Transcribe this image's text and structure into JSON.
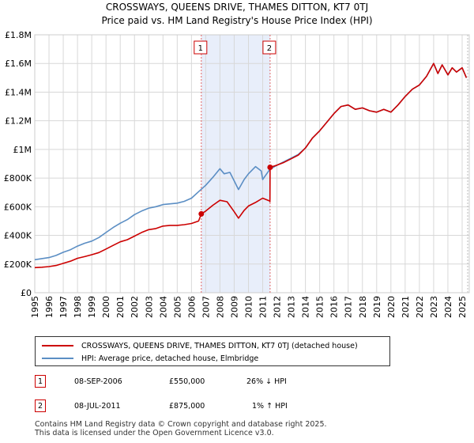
{
  "chart_data": {
    "type": "line",
    "title": "CROSSWAYS, QUEENS DRIVE, THAMES DITTON, KT7 0TJ",
    "subtitle": "Price paid vs. HM Land Registry's House Price Index (HPI)",
    "xlabel": "",
    "ylabel": "",
    "xlim": [
      1995,
      2025.5
    ],
    "ylim": [
      0,
      1800000
    ],
    "x_ticks": [
      "1995",
      "1996",
      "1997",
      "1998",
      "1999",
      "2000",
      "2001",
      "2002",
      "2003",
      "2004",
      "2005",
      "2006",
      "2007",
      "2008",
      "2009",
      "2010",
      "2011",
      "2012",
      "2013",
      "2014",
      "2015",
      "2016",
      "2017",
      "2018",
      "2019",
      "2020",
      "2021",
      "2022",
      "2023",
      "2024",
      "2025"
    ],
    "y_ticks": [
      {
        "value": 0,
        "label": "£0"
      },
      {
        "value": 200000,
        "label": "£200K"
      },
      {
        "value": 400000,
        "label": "£400K"
      },
      {
        "value": 600000,
        "label": "£600K"
      },
      {
        "value": 800000,
        "label": "£800K"
      },
      {
        "value": 1000000,
        "label": "£1M"
      },
      {
        "value": 1200000,
        "label": "£1.2M"
      },
      {
        "value": 1400000,
        "label": "£1.4M"
      },
      {
        "value": 1600000,
        "label": "£1.6M"
      },
      {
        "value": 1800000,
        "label": "£1.8M"
      }
    ],
    "shaded_range": [
      2006.69,
      2011.52
    ],
    "markers": [
      {
        "label": "1",
        "x": 2006.69,
        "y": 550000
      },
      {
        "label": "2",
        "x": 2011.52,
        "y": 875000
      }
    ],
    "series": [
      {
        "name": "CROSSWAYS, QUEENS DRIVE, THAMES DITTON, KT7 0TJ (detached house)",
        "color": "#cc0000",
        "x": [
          1995.0,
          1995.5,
          1996.0,
          1996.5,
          1997.0,
          1997.5,
          1998.0,
          1998.5,
          1999.0,
          1999.5,
          2000.0,
          2000.5,
          2001.0,
          2001.5,
          2002.0,
          2002.5,
          2003.0,
          2003.5,
          2004.0,
          2004.5,
          2005.0,
          2005.5,
          2006.0,
          2006.5,
          2006.69,
          2007.0,
          2007.5,
          2008.0,
          2008.5,
          2009.0,
          2009.3,
          2009.7,
          2010.0,
          2010.5,
          2011.0,
          2011.5,
          2011.51,
          2011.52,
          2012.0,
          2012.5,
          2013.0,
          2013.5,
          2014.0,
          2014.5,
          2015.0,
          2015.5,
          2016.0,
          2016.5,
          2017.0,
          2017.5,
          2018.0,
          2018.5,
          2019.0,
          2019.5,
          2020.0,
          2020.5,
          2021.0,
          2021.5,
          2022.0,
          2022.5,
          2023.0,
          2023.3,
          2023.6,
          2024.0,
          2024.3,
          2024.6,
          2025.0,
          2025.3
        ],
        "y": [
          175000,
          178000,
          182000,
          190000,
          205000,
          220000,
          240000,
          252000,
          265000,
          280000,
          305000,
          330000,
          355000,
          370000,
          395000,
          420000,
          440000,
          448000,
          465000,
          470000,
          470000,
          475000,
          483000,
          500000,
          550000,
          570000,
          610000,
          645000,
          635000,
          565000,
          520000,
          575000,
          605000,
          630000,
          660000,
          640000,
          635000,
          875000,
          890000,
          910000,
          935000,
          960000,
          1010000,
          1080000,
          1130000,
          1190000,
          1250000,
          1300000,
          1310000,
          1280000,
          1290000,
          1270000,
          1260000,
          1280000,
          1260000,
          1310000,
          1370000,
          1420000,
          1450000,
          1510000,
          1600000,
          1530000,
          1590000,
          1520000,
          1570000,
          1540000,
          1570000,
          1500000
        ]
      },
      {
        "name": "HPI: Average price, detached house, Elmbridge",
        "color": "#5b8ec4",
        "x": [
          1995.0,
          1995.5,
          1996.0,
          1996.5,
          1997.0,
          1997.5,
          1998.0,
          1998.5,
          1999.0,
          1999.5,
          2000.0,
          2000.5,
          2001.0,
          2001.5,
          2002.0,
          2002.5,
          2003.0,
          2003.5,
          2004.0,
          2004.5,
          2005.0,
          2005.5,
          2006.0,
          2006.5,
          2007.0,
          2007.5,
          2008.0,
          2008.3,
          2008.7,
          2009.0,
          2009.3,
          2009.7,
          2010.0,
          2010.5,
          2010.9,
          2011.0,
          2011.5,
          2012.0,
          2012.5,
          2013.0,
          2013.5,
          2014.0,
          2014.5,
          2015.0,
          2015.5,
          2016.0,
          2016.5,
          2017.0,
          2017.5,
          2018.0,
          2018.5,
          2019.0,
          2019.5,
          2020.0,
          2020.5,
          2021.0,
          2021.5,
          2022.0,
          2022.5,
          2023.0,
          2023.3,
          2023.6,
          2024.0,
          2024.3,
          2024.6,
          2025.0,
          2025.3
        ],
        "y": [
          230000,
          238000,
          245000,
          260000,
          282000,
          300000,
          325000,
          345000,
          360000,
          385000,
          420000,
          455000,
          485000,
          510000,
          545000,
          570000,
          590000,
          600000,
          615000,
          620000,
          625000,
          638000,
          660000,
          705000,
          750000,
          805000,
          865000,
          830000,
          840000,
          780000,
          720000,
          790000,
          830000,
          880000,
          850000,
          790000,
          860000,
          890000,
          915000,
          940000,
          965000,
          1010000,
          1080000,
          1130000,
          1190000,
          1250000,
          1300000,
          1310000,
          1280000,
          1290000,
          1270000,
          1260000,
          1280000,
          1260000,
          1310000,
          1370000,
          1420000,
          1450000,
          1510000,
          1600000,
          1530000,
          1590000,
          1520000,
          1570000,
          1540000,
          1570000,
          1500000
        ]
      }
    ]
  },
  "legend": {
    "items": [
      {
        "label": "CROSSWAYS, QUEENS DRIVE, THAMES DITTON, KT7 0TJ (detached house)",
        "color": "#cc0000"
      },
      {
        "label": "HPI: Average price, detached house, Elmbridge",
        "color": "#5b8ec4"
      }
    ]
  },
  "transactions": [
    {
      "num": "1",
      "date": "08-SEP-2006",
      "price": "£550,000",
      "hpi": "26% ↓ HPI"
    },
    {
      "num": "2",
      "date": "08-JUL-2011",
      "price": "£875,000",
      "hpi": "1% ↑ HPI"
    }
  ],
  "footer": {
    "line1": "Contains HM Land Registry data © Crown copyright and database right 2025.",
    "line2": "This data is licensed under the Open Government Licence v3.0."
  }
}
